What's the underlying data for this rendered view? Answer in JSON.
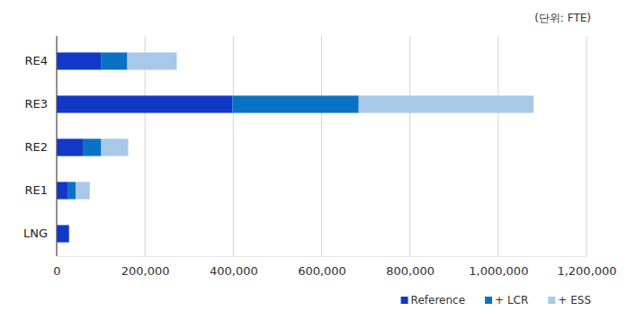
{
  "chart_data": {
    "type": "bar",
    "orientation": "horizontal",
    "stacked": true,
    "grid": true,
    "legend": "bottom-right",
    "annotations": [
      "(단위: FTE)"
    ],
    "categories": [
      "RE4",
      "RE3",
      "RE2",
      "RE1",
      "LNG"
    ],
    "series": [
      {
        "name": "Reference",
        "color": "#1238c8",
        "values": [
          100000,
          398000,
          59000,
          26000,
          28000
        ]
      },
      {
        "name": "+ LCR",
        "color": "#0a72c4",
        "values": [
          60000,
          286000,
          42000,
          17000,
          0
        ]
      },
      {
        "name": "+ ESS",
        "color": "#a8c8ea",
        "values": [
          112000,
          396000,
          61000,
          32000,
          0
        ]
      }
    ],
    "xlim": [
      0,
      1200000
    ],
    "xticks": [
      0,
      {
        "value": 200000,
        "label": "200,000"
      },
      {
        "value": 400000,
        "label": "400,000"
      },
      {
        "value": 600000,
        "label": "600,000"
      },
      {
        "value": 800000,
        "label": "800,000"
      },
      {
        "value": 1000000,
        "label": "1,000,000"
      },
      {
        "value": 1200000,
        "label": "1,200,000"
      }
    ]
  }
}
